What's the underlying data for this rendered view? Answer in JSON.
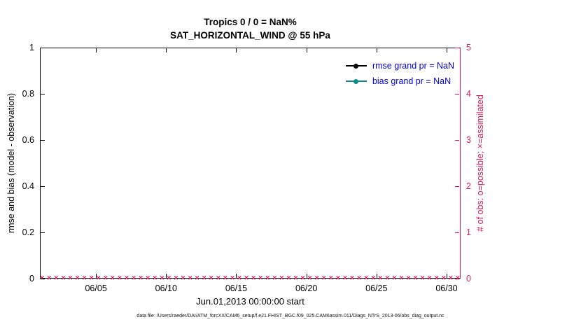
{
  "title": {
    "line1": "Tropics 0 / 0 = NaN%",
    "line2": "SAT_HORIZONTAL_WIND @ 55 hPa"
  },
  "axes": {
    "left": {
      "label": "rmse and bias (model - observation)",
      "ticks": [
        "0",
        "0.2",
        "0.4",
        "0.6",
        "0.8",
        "1"
      ],
      "color": "#000000"
    },
    "right": {
      "label": "# of obs: o=possible; ×=assimilated",
      "ticks": [
        "0",
        "1",
        "2",
        "3",
        "4",
        "5"
      ],
      "color": "#d81b60"
    },
    "x": {
      "label": "Jun.01,2013 00:00:00 start",
      "ticks": [
        {
          "label": "06/05",
          "day": 5
        },
        {
          "label": "06/10",
          "day": 10
        },
        {
          "label": "06/15",
          "day": 15
        },
        {
          "label": "06/20",
          "day": 20
        },
        {
          "label": "06/25",
          "day": 25
        },
        {
          "label": "06/30",
          "day": 30
        }
      ]
    }
  },
  "legend": [
    {
      "label": "rmse grand pr = NaN",
      "line_color": "#000000"
    },
    {
      "label": "bias grand pr = NaN",
      "line_color": "#0d8a8a"
    }
  ],
  "legend_text_color": "#0000ee",
  "footer": "data file: /Users/raeder/DAI/ATM_forcXX/CAM6_setup/f.e21.FHIST_BGC.f09_025.CAM6assim.011/Diags_NTrS_2013-06/obs_diag_output.nc",
  "chart_data": {
    "type": "line",
    "title": "Tropics 0 / 0 = NaN%",
    "subtitle": "SAT_HORIZONTAL_WIND @ 55 hPa",
    "xlabel": "Jun.01,2013 00:00:00 start",
    "ylabel_left": "rmse and bias (model - observation)",
    "ylabel_right": "# of obs: o=possible; ×=assimilated",
    "ylim_left": [
      0,
      1
    ],
    "ylim_right": [
      0,
      5
    ],
    "x_range_days": 30,
    "x_tick_days": [
      5,
      10,
      15,
      20,
      25,
      30
    ],
    "grid": false,
    "legend_position": "top-right-inside",
    "series": [
      {
        "name": "rmse grand pr",
        "grand_pr_value": "NaN",
        "axis": "left",
        "color": "#000000",
        "values": []
      },
      {
        "name": "bias grand pr",
        "grand_pr_value": "NaN",
        "axis": "left",
        "color": "#0d8a8a",
        "values": []
      }
    ],
    "obs_markers": {
      "name": "# of obs (possible o / assimilated ×)",
      "marker": "×",
      "color": "#d81b60",
      "axis": "right",
      "y_value": 0,
      "count": 60
    }
  }
}
